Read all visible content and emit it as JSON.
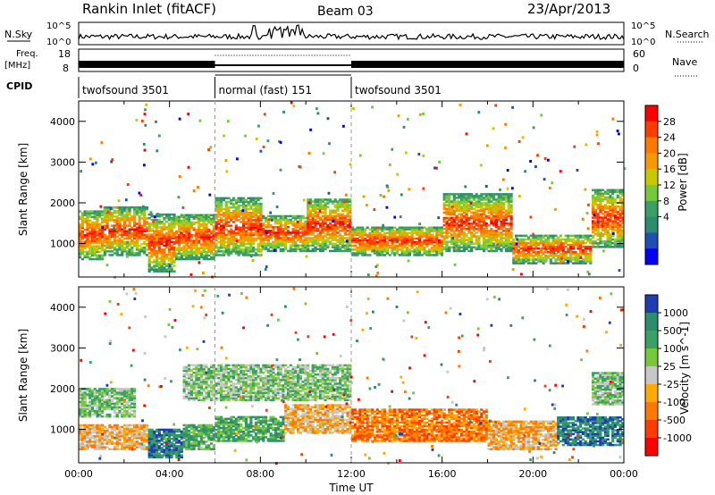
{
  "header": {
    "title": "Rankin Inlet (fitACF)",
    "beam": "Beam 03",
    "date": "23/Apr/2013"
  },
  "top_panels": {
    "nsky_label": "N.Sky",
    "nsearch_label": "N.Search",
    "count_ticks": [
      "10^5",
      "10^0"
    ],
    "freq_label_1": "Freq.",
    "freq_label_2": "[MHz]",
    "freq_ticks": [
      "18",
      "8"
    ],
    "nave_label": "Nave",
    "nave_ticks": [
      "60",
      "0"
    ],
    "cpid_label": "CPID",
    "cpid_segments": [
      {
        "name": "twofsound 3501",
        "start": 0,
        "end": 6
      },
      {
        "name": "normal (fast) 151",
        "start": 6,
        "end": 12
      },
      {
        "name": "twofsound 3501",
        "start": 12,
        "end": 24
      }
    ]
  },
  "chart_data": [
    {
      "type": "heatmap",
      "name": "power",
      "ylabel": "Slant Range [km]",
      "ylim": [
        180,
        4500
      ],
      "yticks": [
        1000,
        2000,
        3000,
        4000
      ],
      "xlim": [
        0,
        24
      ],
      "colorbar_label": "Power [dB]",
      "colorbar_ticks": [
        "28",
        "24",
        "20",
        "16",
        "12",
        "8",
        "4"
      ],
      "colorbar_colors": [
        "#ff0000",
        "#ff3c00",
        "#ff7800",
        "#f59a00",
        "#c8c800",
        "#78c83c",
        "#3ca064",
        "#2d8c6e",
        "#1e50b4",
        "#0000ff"
      ],
      "bands": [
        {
          "start": 0.0,
          "end": 1.0,
          "low": 600,
          "high": 1800
        },
        {
          "start": 1.0,
          "end": 3.0,
          "low": 700,
          "high": 1900
        },
        {
          "start": 3.0,
          "end": 4.2,
          "low": 300,
          "high": 1700
        },
        {
          "start": 4.2,
          "end": 6.0,
          "low": 600,
          "high": 1700
        },
        {
          "start": 6.0,
          "end": 8.0,
          "low": 700,
          "high": 2100
        },
        {
          "start": 8.0,
          "end": 10.0,
          "low": 800,
          "high": 1700
        },
        {
          "start": 10.0,
          "end": 12.0,
          "low": 800,
          "high": 2100
        },
        {
          "start": 12.0,
          "end": 16.0,
          "low": 700,
          "high": 1400
        },
        {
          "start": 16.0,
          "end": 19.0,
          "low": 800,
          "high": 2200
        },
        {
          "start": 19.0,
          "end": 22.5,
          "low": 500,
          "high": 1200
        },
        {
          "start": 22.5,
          "end": 24.0,
          "low": 900,
          "high": 2300
        }
      ]
    },
    {
      "type": "heatmap",
      "name": "velocity",
      "ylabel": "Slant Range [km]",
      "ylim": [
        180,
        4500
      ],
      "yticks": [
        1000,
        2000,
        3000,
        4000
      ],
      "xlim": [
        0,
        24
      ],
      "xticks": [
        "00:00",
        "04:00",
        "08:00",
        "12:00",
        "16:00",
        "20:00",
        "00:00"
      ],
      "xlabel": "Time UT",
      "colorbar_label": "Velocity [m s^-1]",
      "colorbar_ticks": [
        "1000",
        "500",
        "100",
        "25",
        "-25",
        "-100",
        "-500",
        "-1000"
      ],
      "colorbar_colors": [
        "#1e3cb4",
        "#2d8c6e",
        "#3ca064",
        "#78c83c",
        "#c8c8c8",
        "#ffaa00",
        "#ff7800",
        "#ff3c00",
        "#ff0000"
      ],
      "bands": [
        {
          "start": 0.0,
          "end": 3.0,
          "low": 500,
          "high": 1100,
          "v": "-100"
        },
        {
          "start": 3.0,
          "end": 4.5,
          "low": 300,
          "high": 1000,
          "v": "500"
        },
        {
          "start": 4.5,
          "end": 6.0,
          "low": 500,
          "high": 1100,
          "v": "100"
        },
        {
          "start": 6.0,
          "end": 9.0,
          "low": 700,
          "high": 1300,
          "v": "100"
        },
        {
          "start": 9.0,
          "end": 12.0,
          "low": 900,
          "high": 1600,
          "v": "-100"
        },
        {
          "start": 12.0,
          "end": 18.0,
          "low": 700,
          "high": 1500,
          "v": "-500"
        },
        {
          "start": 18.0,
          "end": 21.0,
          "low": 500,
          "high": 1200,
          "v": "-100"
        },
        {
          "start": 21.0,
          "end": 24.0,
          "low": 600,
          "high": 1300,
          "v": "500"
        },
        {
          "start": 0.0,
          "end": 2.5,
          "low": 1300,
          "high": 2000,
          "v": "25"
        },
        {
          "start": 4.5,
          "end": 12.0,
          "low": 1700,
          "high": 2600,
          "v": "25"
        },
        {
          "start": 22.5,
          "end": 24.0,
          "low": 1600,
          "high": 2400,
          "v": "25"
        }
      ]
    }
  ]
}
